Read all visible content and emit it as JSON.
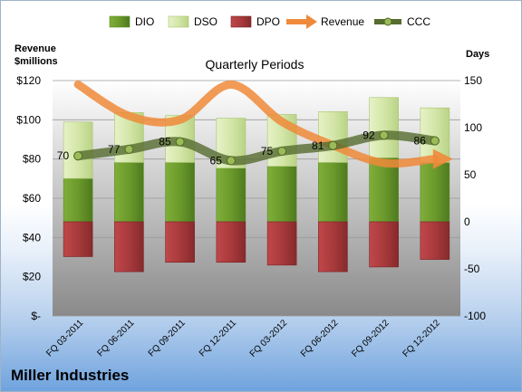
{
  "company": "Miller Industries",
  "chart_data": {
    "type": "bar",
    "title": "Quarterly Periods",
    "left_axis_title": "Revenue\n$millions",
    "right_axis_title": "Days",
    "categories": [
      "FQ 03-2011",
      "FQ 06-2011",
      "FQ 09-2011",
      "FQ 12-2011",
      "FQ 03-2012",
      "FQ 06-2012",
      "FQ 09-2012",
      "FQ 12-2012"
    ],
    "left_ticks": [
      "$-",
      "$20",
      "$40",
      "$60",
      "$80",
      "$100",
      "$120"
    ],
    "left_ylim": [
      0,
      120
    ],
    "right_ticks": [
      "-100",
      "-50",
      "0",
      "50",
      "100",
      "150"
    ],
    "right_ylim": [
      -100,
      150
    ],
    "grid": true,
    "legend_position": "top",
    "series": [
      {
        "name": "DIO",
        "axis": "right",
        "kind": "stacked-bar",
        "color": "#6f9a2e",
        "values": [
          46,
          63,
          63,
          57,
          59,
          63,
          68,
          63
        ]
      },
      {
        "name": "DSO",
        "axis": "right",
        "kind": "stacked-bar",
        "color": "#d4e6a8",
        "values": [
          60,
          53,
          50,
          53,
          55,
          54,
          64,
          58
        ]
      },
      {
        "name": "DPO",
        "axis": "right",
        "kind": "bar-negative",
        "color": "#a83a3c",
        "values": [
          -37,
          -53,
          -43,
          -43,
          -46,
          -53,
          -48,
          -40
        ]
      },
      {
        "name": "Revenue",
        "axis": "left",
        "kind": "line",
        "color": "#ef8a3a",
        "values": [
          118,
          102,
          100,
          118,
          99,
          87,
          78,
          80
        ]
      },
      {
        "name": "CCC",
        "axis": "right",
        "kind": "line",
        "color": "#556b2f",
        "values": [
          70,
          77,
          85,
          65,
          75,
          81,
          92,
          86
        ],
        "labels": [
          "70",
          "77",
          "85",
          "65",
          "75",
          "81",
          "92",
          "86"
        ]
      }
    ]
  }
}
